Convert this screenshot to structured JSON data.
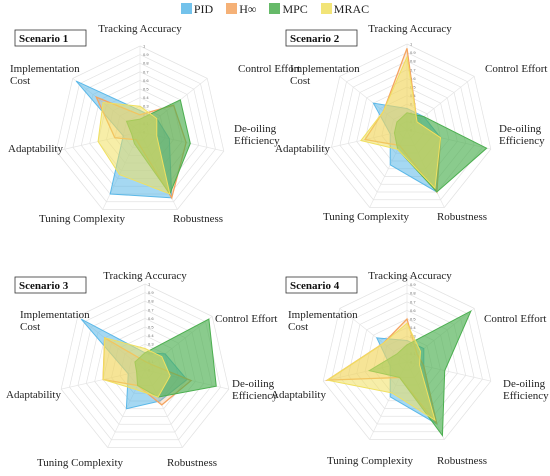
{
  "legend": [
    {
      "label": "PID",
      "color": "#5bb8e8"
    },
    {
      "label": "H∞",
      "color": "#f4a460"
    },
    {
      "label": "MPC",
      "color": "#4caf50"
    },
    {
      "label": "MRAC",
      "color": "#f0e060"
    }
  ],
  "chart_data": [
    {
      "type": "radar",
      "title": "Scenario 1",
      "axes": [
        "Tracking Accuracy",
        "Control Effort",
        "De-oiling Efficiency",
        "Robustness",
        "Tuning Complexity",
        "Adaptability",
        "Implementation Cost"
      ],
      "ticks": [
        "0",
        "0.1",
        "0.2",
        "0.3",
        "0.4",
        "0.5",
        "0.6",
        "0.7",
        "0.8",
        "0.9",
        "1"
      ],
      "range": [
        0,
        1
      ],
      "series": [
        {
          "name": "PID",
          "values": [
            0.25,
            0.25,
            0.35,
            0.85,
            0.8,
            0.2,
            0.95
          ]
        },
        {
          "name": "H∞",
          "values": [
            0.2,
            0.5,
            0.55,
            0.85,
            0.1,
            0.3,
            0.65
          ]
        },
        {
          "name": "MPC",
          "values": [
            0.15,
            0.6,
            0.6,
            0.8,
            0.15,
            0.1,
            0.2
          ]
        },
        {
          "name": "MRAC",
          "values": [
            0.3,
            0.25,
            0.2,
            0.8,
            0.55,
            0.5,
            0.55
          ]
        }
      ]
    },
    {
      "type": "radar",
      "title": "Scenario 2",
      "axes": [
        "Tracking Accuracy",
        "Control Effort",
        "De-oiling Efficiency",
        "Robustness",
        "Tuning Complexity",
        "Adaptability",
        "Implementation Cost"
      ],
      "ticks": [
        "0",
        "0.1",
        "0.2",
        "0.3",
        "0.4",
        "0.5",
        "0.6",
        "0.7",
        "0.8",
        "0.9",
        "1"
      ],
      "range": [
        0,
        1
      ],
      "series": [
        {
          "name": "PID",
          "values": [
            0.25,
            0.25,
            0.4,
            0.8,
            0.45,
            0.2,
            0.5
          ]
        },
        {
          "name": "H∞",
          "values": [
            0.95,
            0.15,
            0.4,
            0.8,
            0.2,
            0.5,
            0.35
          ]
        },
        {
          "name": "MPC",
          "values": [
            0.2,
            0.25,
            0.95,
            0.8,
            0.25,
            0.15,
            0.15
          ]
        },
        {
          "name": "MRAC",
          "values": [
            0.85,
            0.15,
            0.4,
            0.75,
            0.25,
            0.55,
            0.35
          ]
        }
      ]
    },
    {
      "type": "radar",
      "title": "Scenario 3",
      "axes": [
        "Tracking Accuracy",
        "Control Effort",
        "De-oiling Efficiency",
        "Robustness",
        "Tuning Complexity",
        "Adaptability",
        "Implementation Cost"
      ],
      "ticks": [
        "0",
        "0.1",
        "0.2",
        "0.3",
        "0.4",
        "0.5",
        "0.6",
        "0.7",
        "0.8",
        "0.9",
        "1"
      ],
      "range": [
        0,
        1
      ],
      "series": [
        {
          "name": "PID",
          "values": [
            0.2,
            0.3,
            0.5,
            0.4,
            0.5,
            0.2,
            0.95
          ]
        },
        {
          "name": "H∞",
          "values": [
            0.1,
            0.1,
            0.55,
            0.45,
            0.2,
            0.5,
            0.6
          ]
        },
        {
          "name": "MPC",
          "values": [
            0.2,
            0.95,
            0.85,
            0.35,
            0.2,
            0.1,
            0.15
          ]
        },
        {
          "name": "MRAC",
          "values": [
            0.25,
            0.25,
            0.3,
            0.35,
            0.25,
            0.5,
            0.6
          ]
        }
      ]
    },
    {
      "type": "radar",
      "title": "Scenario 4",
      "axes": [
        "Tracking Accuracy",
        "Control Effort",
        "De-oiling Efficiency",
        "Robustness",
        "Tuning Complexity",
        "Adaptability",
        "Implementation Cost"
      ],
      "ticks": [
        "0",
        "0.1",
        "0.2",
        "0.3",
        "0.4",
        "0.5",
        "0.6",
        "0.7",
        "0.8",
        "0.9",
        "1"
      ],
      "range": [
        0,
        1
      ],
      "series": [
        {
          "name": "PID",
          "values": [
            0.25,
            0.25,
            0.2,
            0.8,
            0.45,
            0.2,
            0.45
          ]
        },
        {
          "name": "H∞",
          "values": [
            0.5,
            0.15,
            0.2,
            0.8,
            0.2,
            0.95,
            0.35
          ]
        },
        {
          "name": "MPC",
          "values": [
            0.2,
            0.95,
            0.45,
            0.95,
            0.2,
            0.45,
            0.15
          ]
        },
        {
          "name": "MRAC",
          "values": [
            0.45,
            0.2,
            0.15,
            0.75,
            0.4,
            0.95,
            0.35
          ]
        }
      ]
    }
  ]
}
